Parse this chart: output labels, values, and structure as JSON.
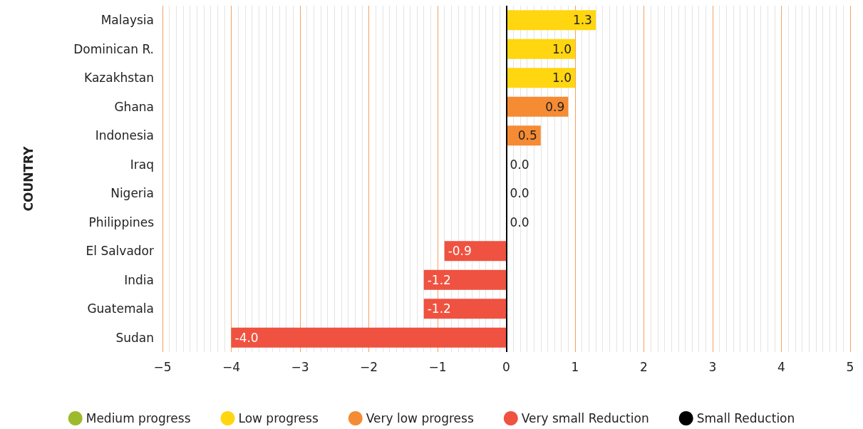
{
  "chart_data": {
    "type": "bar",
    "orientation": "horizontal",
    "stacked": true,
    "ylabel": "COUNTRY",
    "categories": [
      "Malaysia",
      "Dominican R.",
      "Kazakhstan",
      "Ghana",
      "Indonesia",
      "Iraq",
      "Nigeria",
      "Philippines",
      "El Salvador",
      "India",
      "Guatemala",
      "Sudan"
    ],
    "series": [
      {
        "name": "Medium progress",
        "color": "#9cba2c",
        "values": [
          null,
          null,
          null,
          null,
          null,
          null,
          null,
          null,
          null,
          null,
          null,
          null
        ]
      },
      {
        "name": "Low progress",
        "color": "#ffd60f",
        "values": [
          1.3,
          1.0,
          1.0,
          null,
          null,
          null,
          null,
          null,
          null,
          null,
          null,
          null
        ],
        "value_labels": [
          "1.3",
          "1.0",
          "1.0",
          null,
          null,
          null,
          null,
          null,
          null,
          null,
          null,
          null
        ]
      },
      {
        "name": "Very low progress",
        "color": "#f58b33",
        "values": [
          null,
          null,
          null,
          0.9,
          0.5,
          0.0,
          0.0,
          0.0,
          null,
          null,
          null,
          null
        ],
        "value_labels": [
          null,
          null,
          null,
          "0.9",
          "0.5",
          "0.0",
          "0.0",
          "0.0",
          null,
          null,
          null,
          null
        ]
      },
      {
        "name": "Very small Reduction",
        "color": "#ef5240",
        "values": [
          null,
          null,
          null,
          null,
          null,
          null,
          null,
          null,
          -0.9,
          -1.2,
          -1.2,
          -4.0
        ],
        "value_labels": [
          null,
          null,
          null,
          null,
          null,
          null,
          null,
          null,
          "-0.9",
          "-1.2",
          "-1.2",
          "-4.0"
        ]
      },
      {
        "name": "Small Reduction",
        "color": "#000000",
        "values": [
          null,
          null,
          null,
          null,
          null,
          null,
          null,
          null,
          null,
          null,
          null,
          null
        ]
      }
    ],
    "xlim": [
      -5,
      5
    ],
    "xticks": [
      -5,
      -4,
      -3,
      -2,
      -1,
      0,
      1,
      2,
      3,
      4,
      5
    ],
    "grid": "x",
    "legend": "bottom"
  }
}
